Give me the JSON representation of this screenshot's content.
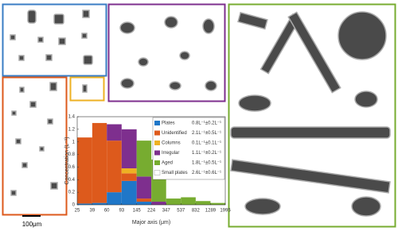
{
  "chart_data": {
    "type": "stacked-histogram",
    "xlabel": "Major axis (μm)",
    "ylabel": "Concentration (L⁻¹)",
    "scale_bar": "100μm",
    "bins": [
      25,
      39,
      60,
      93,
      145,
      224,
      347,
      537,
      832,
      1289,
      1995
    ],
    "xlim": [
      25,
      1995
    ],
    "xscale": "log",
    "xticks": [
      25,
      39,
      60,
      93,
      145,
      224,
      347,
      537,
      832,
      1289,
      1995
    ],
    "ylim": [
      0,
      1.4
    ],
    "yticks": [
      0,
      0.2,
      0.4,
      0.6,
      0.8,
      1,
      1.2,
      1.4
    ],
    "legend": "upper right",
    "series": [
      {
        "name": "Plates",
        "color": "#1f77c8",
        "concentration": "0.8L⁻¹±0.2L⁻¹",
        "values": [
          0.02,
          0.03,
          0.2,
          0.38,
          0.05,
          0,
          0,
          0,
          0,
          0
        ]
      },
      {
        "name": "Unidentified",
        "color": "#dd5a1c",
        "concentration": "2.1L⁻¹±0.5L⁻¹",
        "values": [
          1.05,
          1.27,
          0.82,
          0.12,
          0.05,
          0,
          0,
          0,
          0,
          0
        ]
      },
      {
        "name": "Columns",
        "color": "#eeb123",
        "concentration": "0.1L⁻¹±0.1L⁻¹",
        "values": [
          0,
          0,
          0,
          0.08,
          0,
          0,
          0,
          0,
          0,
          0
        ]
      },
      {
        "name": "Irregular",
        "color": "#7e2f8e",
        "concentration": "1.1L⁻¹±0.2L⁻¹",
        "values": [
          0,
          0,
          0.26,
          0.62,
          0.35,
          0.05,
          0,
          0,
          0,
          0
        ]
      },
      {
        "name": "Aged",
        "color": "#77ac30",
        "concentration": "1.8L⁻¹±0.5L⁻¹",
        "values": [
          0,
          0,
          0,
          0,
          0.57,
          0.67,
          0.1,
          0.12,
          0.06,
          0.03
        ]
      },
      {
        "name": "Small plates",
        "color": "#ffffff",
        "concentration": "2.6L⁻¹±0.6L⁻¹",
        "values": [
          0,
          0,
          0,
          0,
          0,
          0,
          0,
          0,
          0,
          0
        ]
      }
    ]
  }
}
